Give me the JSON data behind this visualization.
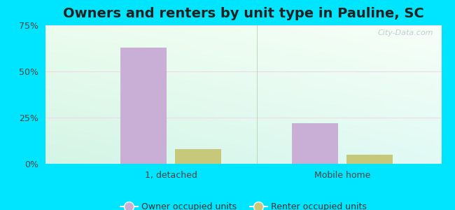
{
  "title": "Owners and renters by unit type in Pauline, SC",
  "categories": [
    "1, detached",
    "Mobile home"
  ],
  "owner_values": [
    63,
    22
  ],
  "renter_values": [
    8,
    5
  ],
  "owner_color": "#c9aed6",
  "renter_color": "#c8c87a",
  "ylim": [
    0,
    75
  ],
  "yticks": [
    0,
    25,
    50,
    75
  ],
  "ytick_labels": [
    "0%",
    "25%",
    "50%",
    "75%"
  ],
  "title_fontsize": 14,
  "legend_labels": [
    "Owner occupied units",
    "Renter occupied units"
  ],
  "bar_width": 0.35,
  "outer_color": "#00e5ff",
  "watermark": "City-Data.com",
  "tick_color": "#444444",
  "grid_color": "#e0ece0"
}
